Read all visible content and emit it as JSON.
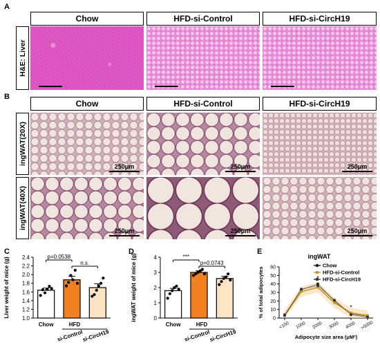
{
  "panel_letters": {
    "a": "A",
    "b": "B",
    "c": "C",
    "d": "D",
    "e": "E"
  },
  "panel_a": {
    "headers": [
      "Chow",
      "HFD-si-Control",
      "HFD-si-CircH19"
    ],
    "row_label": "H&E: Liver"
  },
  "panel_b": {
    "headers": [
      "Chow",
      "HFD-si-Control",
      "HFD-si-CircH19"
    ],
    "row_labels": [
      "ingWAT(20X)",
      "ingWAT(40X)"
    ],
    "scale_text": "250μm"
  },
  "chart_data": [
    {
      "type": "bar",
      "panel": "C",
      "ylabel": "Liver weight of mice (g)",
      "ylim": [
        1.0,
        2.4
      ],
      "yticks": [
        "1.0",
        "1.2",
        "1.4",
        "1.6",
        "1.8",
        "2.0",
        "2.2",
        "2.4"
      ],
      "categories": [
        "Chow",
        "si-Control",
        "si-CircH19"
      ],
      "group_label": "HFD",
      "values": [
        1.64,
        1.88,
        1.7
      ],
      "sem": [
        0.05,
        0.08,
        0.09
      ],
      "colors": [
        "#ffffff",
        "#f08020",
        "#fbe3c3"
      ],
      "points": [
        [
          1.52,
          1.65,
          1.58,
          1.66,
          1.73,
          1.68
        ],
        [
          1.74,
          1.82,
          1.98,
          1.88,
          2.1,
          1.8
        ],
        [
          1.5,
          1.54,
          1.64,
          1.74,
          1.8,
          1.92
        ]
      ],
      "comparisons": [
        {
          "from": 0,
          "to": 1,
          "label": "p=0.0538"
        },
        {
          "from": 1,
          "to": 2,
          "label": "n.s."
        }
      ]
    },
    {
      "type": "bar",
      "panel": "D",
      "ylabel": "ingWAT weight of mice (g)",
      "ylim": [
        0,
        4
      ],
      "yticks": [
        "0",
        "1",
        "2",
        "3",
        "4"
      ],
      "categories": [
        "Chow",
        "si-Control",
        "si-CircH19"
      ],
      "group_label": "HFD",
      "values": [
        1.8,
        3.0,
        2.6
      ],
      "sem": [
        0.15,
        0.1,
        0.15
      ],
      "colors": [
        "#ffffff",
        "#f08020",
        "#fbe3c3"
      ],
      "points": [
        [
          1.3,
          1.6,
          1.8,
          2.0,
          2.1,
          1.9
        ],
        [
          2.8,
          2.9,
          3.0,
          3.1,
          3.2,
          2.9
        ],
        [
          2.2,
          2.4,
          2.6,
          2.7,
          2.9,
          2.5
        ]
      ],
      "comparisons": [
        {
          "from": 0,
          "to": 1,
          "label": "***"
        },
        {
          "from": 1,
          "to": 2,
          "label": "p=0.0743"
        }
      ]
    },
    {
      "type": "line",
      "panel": "E",
      "title": "ingWAT",
      "xlabel": "Adipocyte size area (μM²)",
      "ylabel": "% of total adipocytes",
      "x": [
        "<100",
        "1000",
        "2000",
        "3000",
        "4000",
        ">5000"
      ],
      "ylim": [
        0,
        60
      ],
      "yticks": [
        "0",
        "10",
        "20",
        "30",
        "40",
        "50",
        "60"
      ],
      "series": [
        {
          "name": "Chow",
          "color": "#222222",
          "values": [
            4,
            33,
            40,
            20,
            5,
            2
          ]
        },
        {
          "name": "HFD-si-Control",
          "color": "#c8941e",
          "values": [
            3,
            31,
            36,
            18,
            6,
            3
          ]
        },
        {
          "name": "HFD-si-CircH19",
          "color": "#333333",
          "values": [
            3,
            34,
            38,
            21,
            4,
            1
          ]
        }
      ],
      "annotations": [
        {
          "x": "2000",
          "text": "*"
        },
        {
          "x": "4000",
          "text": "*"
        }
      ]
    }
  ]
}
